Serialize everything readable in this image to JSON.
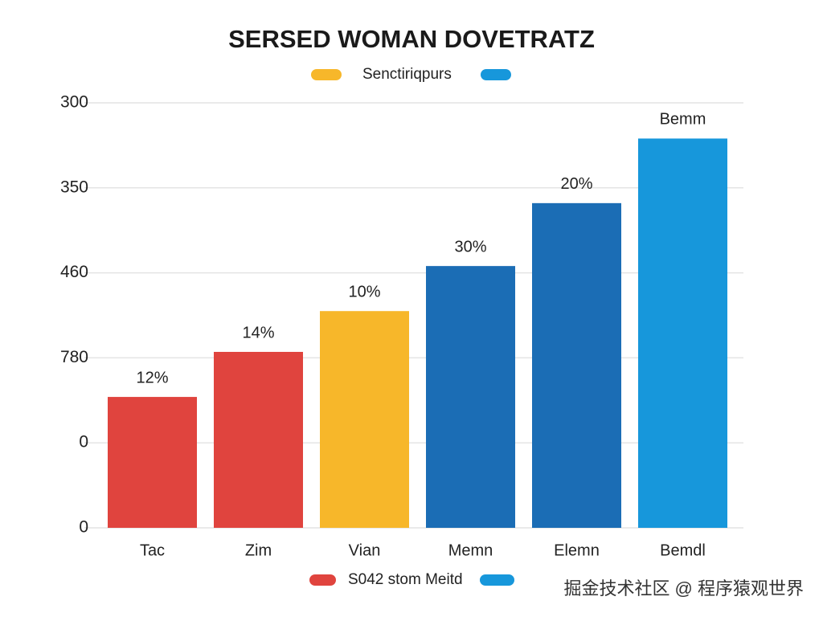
{
  "chart_data": {
    "type": "bar",
    "title": "SERSED WOMAN DOVETRATZ",
    "categories": [
      "Tac",
      "Zim",
      "Vian",
      "Memn",
      "Elemn",
      "Bemdl"
    ],
    "values": [
      1.54,
      2.07,
      2.55,
      3.08,
      3.82,
      4.58
    ],
    "colors": [
      "#e0443e",
      "#e0443e",
      "#f7b72a",
      "#1b6db5",
      "#1b6db5",
      "#1797db"
    ],
    "annotations": [
      "12%",
      "14%",
      "10%",
      "30%",
      "20%",
      "Bemm"
    ],
    "ylim": [
      0,
      5
    ],
    "yticks": [
      {
        "value": 0,
        "label": "0"
      },
      {
        "value": 1,
        "label": "0"
      },
      {
        "value": 2,
        "label": "780"
      },
      {
        "value": 3,
        "label": "460"
      },
      {
        "value": 4,
        "label": "350"
      },
      {
        "value": 5,
        "label": "300"
      }
    ],
    "grid": true,
    "legends": [
      {
        "items": [
          {
            "color": "#f7b72a",
            "label": "Senctiriqpurs"
          },
          {
            "color": "#1797db"
          }
        ]
      },
      {
        "items": [
          {
            "color": "#e0443e",
            "label": "S042 stom Meitd"
          },
          {
            "color": "#1797db"
          }
        ]
      }
    ],
    "watermark": "掘金技术社区 @ 程序猿观世界"
  }
}
